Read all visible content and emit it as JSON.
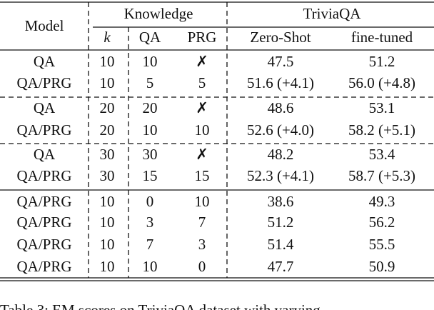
{
  "header": {
    "model": "Model",
    "knowledge": "Knowledge",
    "triviaqa": "TriviaQA",
    "k": "k",
    "qa": "QA",
    "prg": "PRG",
    "zero_shot": "Zero-Shot",
    "fine_tuned": "fine-tuned"
  },
  "table": {
    "rows": [
      [
        "QA",
        "10",
        "10",
        "✗",
        "47.5",
        "51.2"
      ],
      [
        "QA/PRG",
        "10",
        "5",
        "5",
        "51.6 (+4.1)",
        "56.0 (+4.8)"
      ],
      [
        "QA",
        "20",
        "20",
        "✗",
        "48.6",
        "53.1"
      ],
      [
        "QA/PRG",
        "20",
        "10",
        "10",
        "52.6 (+4.0)",
        "58.2 (+5.1)"
      ],
      [
        "QA",
        "30",
        "30",
        "✗",
        "48.2",
        "53.4"
      ],
      [
        "QA/PRG",
        "30",
        "15",
        "15",
        "52.3 (+4.1)",
        "58.7 (+5.3)"
      ],
      [
        "QA/PRG",
        "10",
        "0",
        "10",
        "38.6",
        "49.3"
      ],
      [
        "QA/PRG",
        "10",
        "3",
        "7",
        "51.2",
        "56.2"
      ],
      [
        "QA/PRG",
        "10",
        "7",
        "3",
        "51.4",
        "55.5"
      ],
      [
        "QA/PRG",
        "10",
        "10",
        "0",
        "47.7",
        "50.9"
      ]
    ]
  },
  "caption": "Table 3: EM scores on TriviaQA dataset with varying"
}
